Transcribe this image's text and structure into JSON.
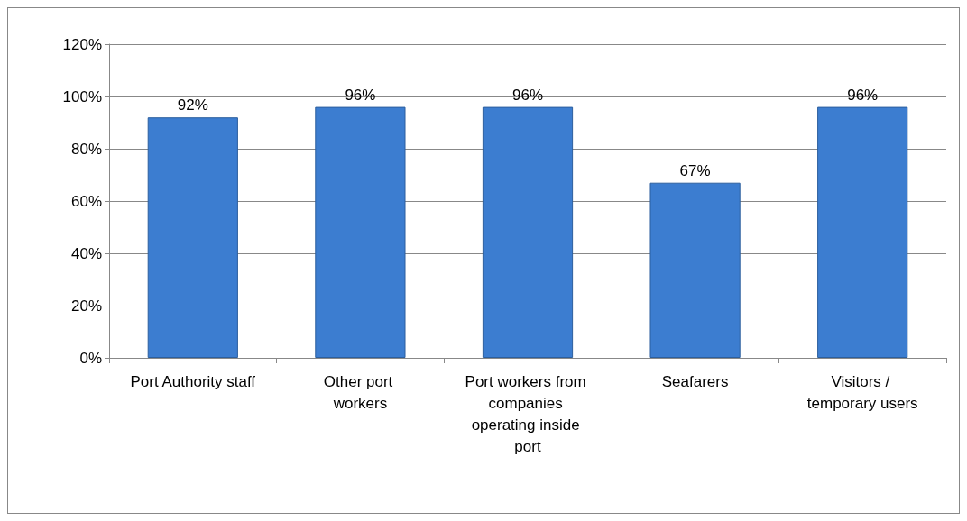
{
  "chart_data": {
    "type": "bar",
    "categories": [
      "Port Authority staff",
      "Other port workers",
      "Port workers from companies operating inside port",
      "Seafarers",
      "Visitors / temporary users"
    ],
    "values": [
      92,
      96,
      96,
      67,
      96
    ],
    "value_labels": [
      "92%",
      "96%",
      "96%",
      "67%",
      "96%"
    ],
    "color": "#3c7dd0",
    "ylim": [
      0,
      120
    ],
    "yticks": [
      {
        "value": 0,
        "label": "0%"
      },
      {
        "value": 20,
        "label": "20%"
      },
      {
        "value": 40,
        "label": "40%"
      },
      {
        "value": 60,
        "label": "60%"
      },
      {
        "value": 80,
        "label": "80%"
      },
      {
        "value": 100,
        "label": "100%"
      },
      {
        "value": 120,
        "label": "120%"
      }
    ],
    "grid": "y"
  }
}
